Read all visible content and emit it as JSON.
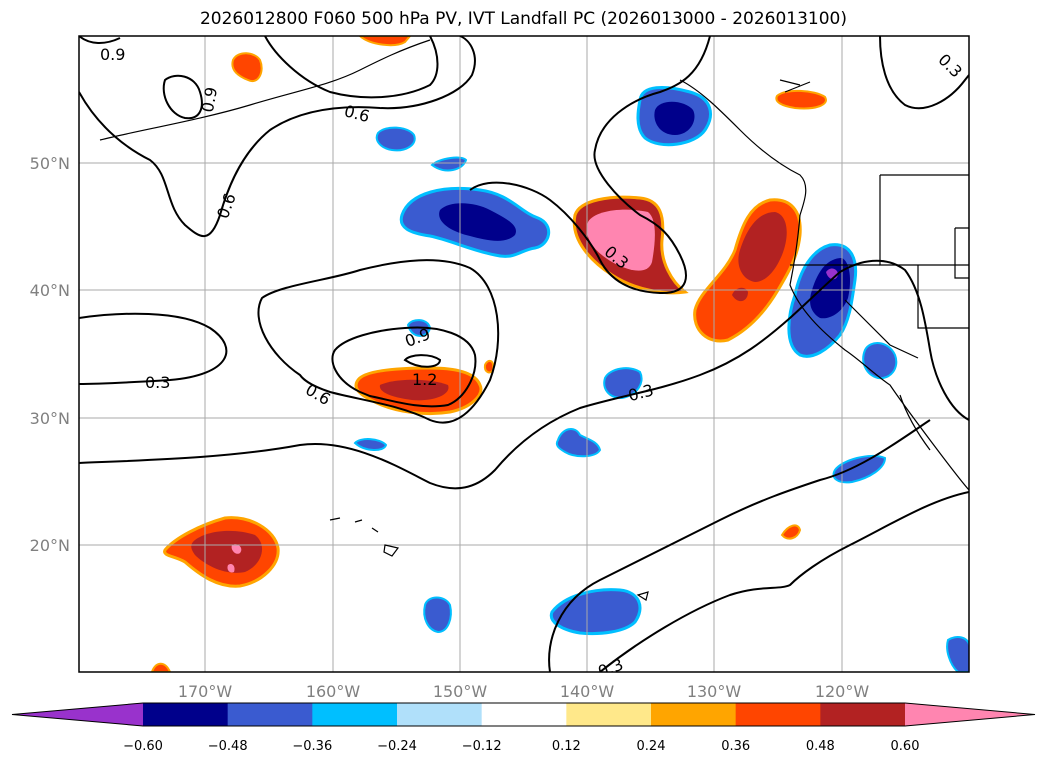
{
  "title": "2026012800 F060 500 hPa PV, IVT Landfall PC (2026013000 - 2026013100)",
  "map": {
    "lon_ticks": [
      "170°W",
      "160°W",
      "150°W",
      "140°W",
      "130°W",
      "120°W"
    ],
    "lat_ticks": [
      "50°N",
      "40°N",
      "30°N",
      "20°N"
    ],
    "grid": true
  },
  "contours": {
    "levels": [
      "0.3",
      "0.6",
      "0.9",
      "1.2"
    ],
    "labels": [
      {
        "text": "0.9"
      },
      {
        "text": "0.9"
      },
      {
        "text": "0.6"
      },
      {
        "text": "0.6"
      },
      {
        "text": "0.3"
      },
      {
        "text": "0.3"
      },
      {
        "text": "0.6"
      },
      {
        "text": "0.9"
      },
      {
        "text": "1.2"
      },
      {
        "text": "0.3"
      },
      {
        "text": "0.3"
      },
      {
        "text": "0.3"
      }
    ]
  },
  "colorbar": {
    "ticks": [
      "−0.60",
      "−0.48",
      "−0.36",
      "−0.24",
      "−0.12",
      "0.12",
      "0.24",
      "0.36",
      "0.48",
      "0.60"
    ],
    "colors": [
      "#9932cc",
      "#00008b",
      "#3a5bd0",
      "#00bfff",
      "#b0e0fa",
      "#ffffff",
      "#ffe88a",
      "#ffa500",
      "#ff4500",
      "#b22222",
      "#ff85b0"
    ],
    "extend": "both"
  }
}
